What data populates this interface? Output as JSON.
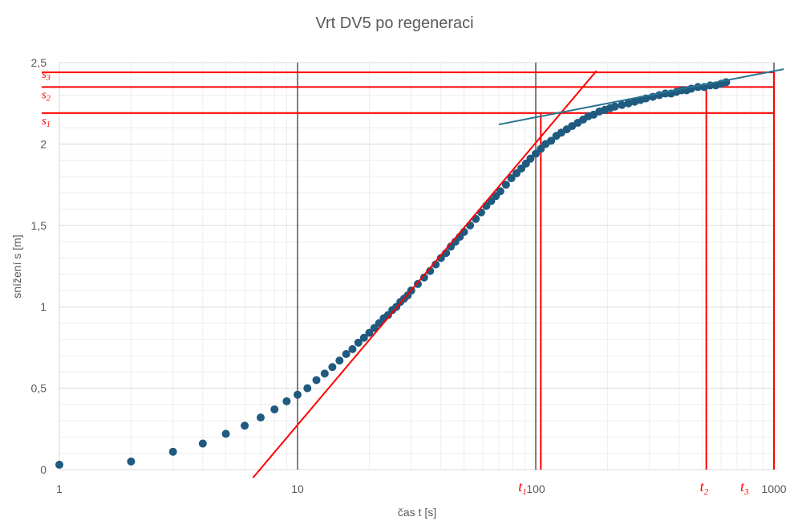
{
  "chart_data": {
    "type": "scatter",
    "title": "Vrt DV5 po regeneraci",
    "xlabel": "čas t [s]",
    "ylabel": "snížení s [m]",
    "xscale": "log",
    "xlim": [
      1,
      1000
    ],
    "ylim": [
      0,
      2.5
    ],
    "grid": true,
    "x_ticks": [
      {
        "value": 1,
        "label": "1"
      },
      {
        "value": 10,
        "label": "10"
      },
      {
        "value": 100,
        "label": "100"
      },
      {
        "value": 1000,
        "label": "1000"
      }
    ],
    "y_ticks": [
      {
        "value": 0,
        "label": "0"
      },
      {
        "value": 0.5,
        "label": "0,5"
      },
      {
        "value": 1,
        "label": "1"
      },
      {
        "value": 1.5,
        "label": "1,5"
      },
      {
        "value": 2,
        "label": "2"
      },
      {
        "value": 2.5,
        "label": "2,5"
      }
    ],
    "point_color": "#1f5a80",
    "series": [
      {
        "x": [
          1,
          2,
          3,
          4,
          5,
          6,
          7,
          8,
          9,
          10,
          11,
          12,
          13,
          14,
          15,
          16,
          17,
          18,
          19,
          20,
          21,
          22,
          23,
          24,
          25,
          26,
          27,
          28,
          29,
          30,
          32,
          34,
          36,
          38,
          40,
          42,
          44,
          46,
          48,
          50,
          53,
          56,
          59,
          62,
          65,
          68,
          71,
          75,
          79,
          83,
          87,
          91,
          95,
          100,
          105,
          110,
          116,
          122,
          128,
          135,
          142,
          150,
          158,
          166,
          175,
          185,
          195,
          205,
          215,
          230,
          245,
          260,
          275,
          290,
          310,
          330,
          350,
          370,
          390,
          410,
          430,
          450,
          480,
          510,
          540,
          570,
          600,
          630
        ],
        "y": [
          0.03,
          0.05,
          0.11,
          0.16,
          0.22,
          0.27,
          0.32,
          0.37,
          0.42,
          0.46,
          0.5,
          0.55,
          0.59,
          0.63,
          0.67,
          0.71,
          0.74,
          0.78,
          0.81,
          0.84,
          0.87,
          0.9,
          0.93,
          0.95,
          0.98,
          1.0,
          1.03,
          1.05,
          1.07,
          1.1,
          1.14,
          1.18,
          1.22,
          1.26,
          1.3,
          1.33,
          1.37,
          1.4,
          1.43,
          1.46,
          1.5,
          1.54,
          1.58,
          1.62,
          1.65,
          1.68,
          1.71,
          1.75,
          1.79,
          1.82,
          1.85,
          1.88,
          1.91,
          1.94,
          1.97,
          2.0,
          2.02,
          2.05,
          2.07,
          2.09,
          2.11,
          2.13,
          2.15,
          2.17,
          2.18,
          2.2,
          2.21,
          2.22,
          2.23,
          2.24,
          2.25,
          2.26,
          2.27,
          2.28,
          2.29,
          2.3,
          2.31,
          2.31,
          2.32,
          2.33,
          2.33,
          2.34,
          2.35,
          2.35,
          2.36,
          2.36,
          2.37,
          2.38
        ]
      }
    ],
    "red_color": "#ff0000",
    "teal_color": "#2a7590",
    "fit_line_red": {
      "x": [
        6.5,
        180
      ],
      "y": [
        -0.05,
        2.45
      ]
    },
    "fit_line_teal": {
      "x": [
        70,
        1100
      ],
      "y": [
        2.12,
        2.46
      ]
    },
    "hlines": [
      {
        "label": "s",
        "sub": "3",
        "y": 2.44
      },
      {
        "label": "s",
        "sub": "2",
        "y": 2.35
      },
      {
        "label": "s",
        "sub": "1",
        "y": 2.19
      }
    ],
    "vlines": [
      {
        "label": "t",
        "sub": "1",
        "x": 105
      },
      {
        "label": "t",
        "sub": "2",
        "x": 520
      },
      {
        "label": "t",
        "sub": "3",
        "x": 1000
      }
    ],
    "major_vlines_x": [
      10,
      100,
      1000
    ]
  }
}
